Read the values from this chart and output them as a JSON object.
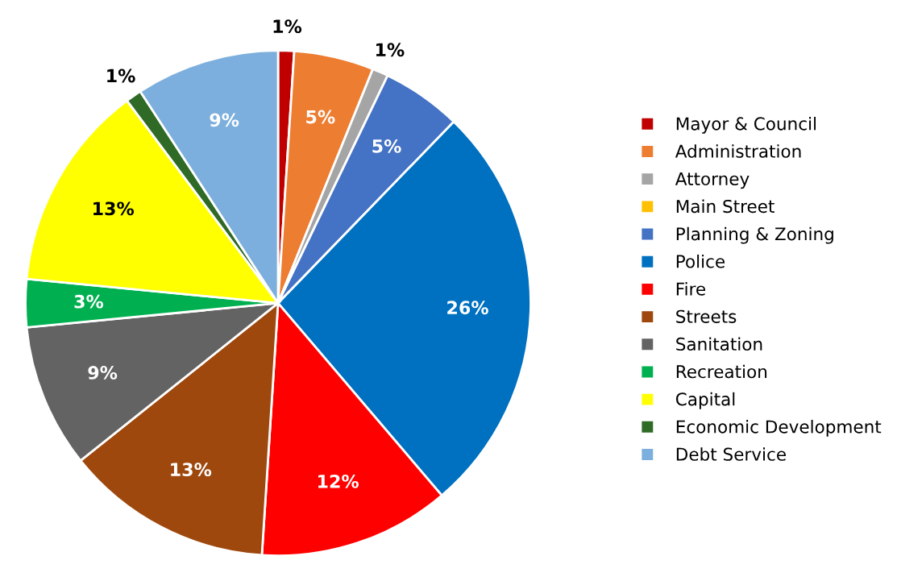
{
  "chart_data": {
    "type": "pie",
    "categories": [
      "Mayor & Council",
      "Administration",
      "Attorney",
      "Main Street",
      "Planning & Zoning",
      "Police",
      "Fire",
      "Streets",
      "Sanitation",
      "Recreation",
      "Capital",
      "Economic Development",
      "Debt Service"
    ],
    "values": [
      1,
      5,
      1,
      0,
      5,
      26,
      12,
      13,
      9,
      3,
      13,
      1,
      9
    ],
    "value_labels": [
      "1%",
      "5%",
      "1%",
      null,
      "5%",
      "26%",
      "12%",
      "13%",
      "9%",
      "3%",
      "13%",
      "1%",
      "9%"
    ],
    "colors": [
      "#c00000",
      "#ed7d31",
      "#a5a5a5",
      "#ffc000",
      "#4472c4",
      "#0070c0",
      "#ff0000",
      "#9e480e",
      "#636363",
      "#00b050",
      "#ffff00",
      "#2f6b26",
      "#7cafdd"
    ],
    "legend": "right"
  }
}
